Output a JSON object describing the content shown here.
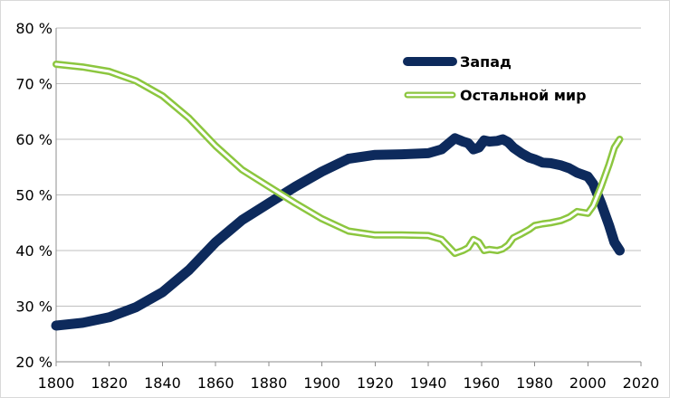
{
  "chart_data": {
    "type": "line",
    "title": "",
    "xlabel": "",
    "ylabel": "",
    "xlim": [
      1800,
      2020
    ],
    "ylim": [
      20,
      80
    ],
    "x_ticks": [
      "1800",
      "1820",
      "1840",
      "1860",
      "1880",
      "1900",
      "1920",
      "1940",
      "1960",
      "1980",
      "2000",
      "2020"
    ],
    "y_ticks": [
      "20 %",
      "30 %",
      "40 %",
      "50 %",
      "60 %",
      "70 %",
      "80 %"
    ],
    "grid": "horizontal",
    "legend_position": "top-right",
    "series": [
      {
        "name": "Запад",
        "color": "#0d2a5c",
        "style": "thick-solid",
        "points": [
          [
            1800,
            26.5
          ],
          [
            1810,
            27.0
          ],
          [
            1820,
            28.0
          ],
          [
            1830,
            29.8
          ],
          [
            1840,
            32.5
          ],
          [
            1850,
            36.5
          ],
          [
            1860,
            41.5
          ],
          [
            1870,
            45.5
          ],
          [
            1880,
            48.5
          ],
          [
            1890,
            51.5
          ],
          [
            1900,
            54.2
          ],
          [
            1910,
            56.5
          ],
          [
            1920,
            57.2
          ],
          [
            1930,
            57.3
          ],
          [
            1940,
            57.5
          ],
          [
            1945,
            58.2
          ],
          [
            1950,
            60.2
          ],
          [
            1953,
            59.6
          ],
          [
            1955,
            59.3
          ],
          [
            1957,
            58.2
          ],
          [
            1959,
            58.5
          ],
          [
            1961,
            59.8
          ],
          [
            1963,
            59.6
          ],
          [
            1966,
            59.7
          ],
          [
            1968,
            60.0
          ],
          [
            1970,
            59.5
          ],
          [
            1972,
            58.5
          ],
          [
            1975,
            57.5
          ],
          [
            1978,
            56.7
          ],
          [
            1980,
            56.4
          ],
          [
            1983,
            55.8
          ],
          [
            1986,
            55.7
          ],
          [
            1990,
            55.3
          ],
          [
            1993,
            54.8
          ],
          [
            1996,
            54.0
          ],
          [
            2000,
            53.3
          ],
          [
            2002,
            52.0
          ],
          [
            2005,
            48.5
          ],
          [
            2008,
            44.5
          ],
          [
            2010,
            41.5
          ],
          [
            2012,
            40.0
          ]
        ]
      },
      {
        "name": "Остальной мир",
        "color": "#8cc63f",
        "style": "double-outline",
        "points": [
          [
            1800,
            73.5
          ],
          [
            1810,
            73.0
          ],
          [
            1820,
            72.2
          ],
          [
            1830,
            70.5
          ],
          [
            1840,
            67.8
          ],
          [
            1850,
            63.8
          ],
          [
            1860,
            58.8
          ],
          [
            1870,
            54.5
          ],
          [
            1880,
            51.5
          ],
          [
            1890,
            48.5
          ],
          [
            1900,
            45.7
          ],
          [
            1910,
            43.5
          ],
          [
            1920,
            42.8
          ],
          [
            1930,
            42.8
          ],
          [
            1940,
            42.7
          ],
          [
            1945,
            42.0
          ],
          [
            1950,
            39.5
          ],
          [
            1953,
            40.0
          ],
          [
            1955,
            40.5
          ],
          [
            1957,
            42.0
          ],
          [
            1959,
            41.5
          ],
          [
            1961,
            40.0
          ],
          [
            1963,
            40.2
          ],
          [
            1966,
            40.0
          ],
          [
            1968,
            40.3
          ],
          [
            1970,
            41.0
          ],
          [
            1972,
            42.3
          ],
          [
            1975,
            43.0
          ],
          [
            1978,
            43.8
          ],
          [
            1980,
            44.5
          ],
          [
            1983,
            44.8
          ],
          [
            1986,
            45.0
          ],
          [
            1990,
            45.4
          ],
          [
            1993,
            46.0
          ],
          [
            1996,
            47.0
          ],
          [
            2000,
            46.7
          ],
          [
            2002,
            48.0
          ],
          [
            2005,
            51.5
          ],
          [
            2008,
            55.5
          ],
          [
            2010,
            58.5
          ],
          [
            2012,
            60.0
          ]
        ]
      }
    ]
  }
}
